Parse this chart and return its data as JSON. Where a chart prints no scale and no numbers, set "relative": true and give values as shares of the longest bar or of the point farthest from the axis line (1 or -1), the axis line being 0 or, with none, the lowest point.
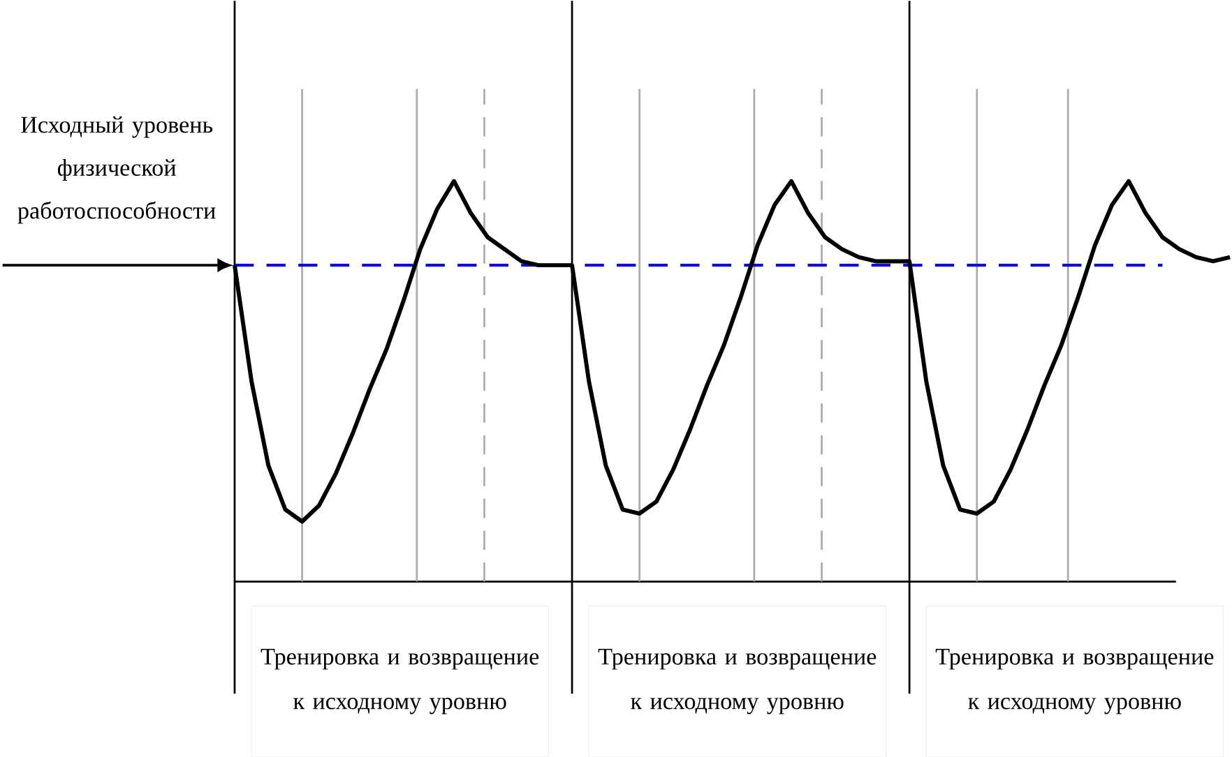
{
  "chart_data": {
    "type": "line",
    "relative": true,
    "categories": [
      null,
      null,
      null,
      null,
      null,
      null,
      null,
      null,
      null,
      null,
      null,
      null,
      null,
      null,
      null,
      null,
      null,
      null,
      null,
      null,
      null,
      null,
      null,
      null,
      null,
      null,
      null,
      null,
      null,
      null,
      null,
      null,
      null,
      null,
      null,
      null,
      null,
      null,
      null,
      null,
      null,
      null,
      null,
      null,
      null,
      null,
      null,
      null,
      null,
      null,
      null,
      null,
      null,
      null,
      null,
      null,
      null,
      null,
      null,
      null
    ],
    "series": [
      {
        "color": "#000000",
        "values": [
          0.79,
          0.5,
          0.29,
          0.18,
          0.15,
          0.19,
          0.27,
          0.37,
          0.48,
          0.58,
          0.7,
          0.83,
          0.93,
          1.0,
          0.92,
          0.86,
          0.83,
          0.8,
          0.79,
          0.79,
          0.79,
          0.5,
          0.29,
          0.18,
          0.17,
          0.2,
          0.28,
          0.38,
          0.49,
          0.59,
          0.71,
          0.84,
          0.94,
          1.0,
          0.92,
          0.86,
          0.83,
          0.81,
          0.8,
          0.8,
          0.8,
          0.5,
          0.29,
          0.18,
          0.17,
          0.2,
          0.28,
          0.38,
          0.49,
          0.59,
          0.71,
          0.84,
          0.94,
          1.0,
          0.92,
          0.86,
          0.83,
          0.81,
          0.8,
          0.81
        ]
      }
    ],
    "ref_lines": [
      {
        "axis": "y",
        "value": 0.79,
        "color": "#1010cc",
        "line_style": "dashed"
      }
    ],
    "grid": "x",
    "annotations": [
      "Исходный уровень физической работоспособности",
      "Тренировка и возвращение к исходному уровню",
      "Тренировка и возвращение к исходному уровню",
      "Тренировка и возвращение к исходному уровню"
    ]
  }
}
